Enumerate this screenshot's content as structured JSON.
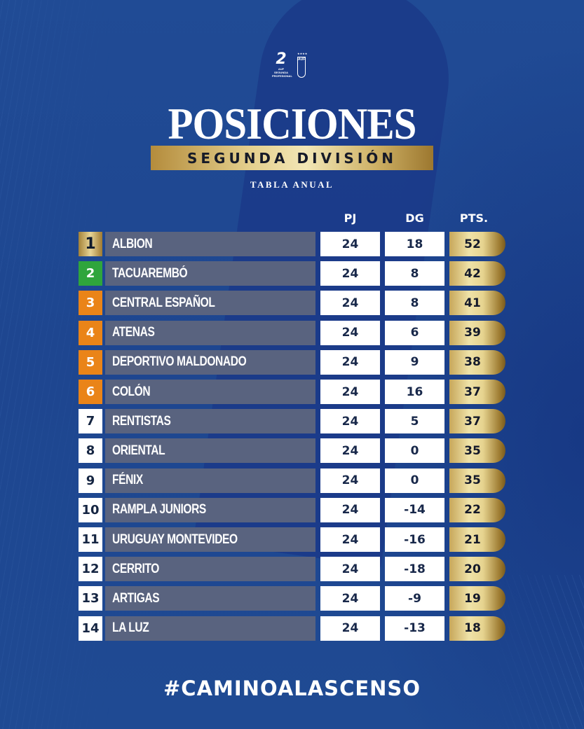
{
  "header": {
    "logos": {
      "league_logo_text": "2",
      "league_logo_sub": "AUF SEGUNDA PROFESIONAL",
      "federation_logo_text": "AUF",
      "federation_logo_stars": "★★★★"
    },
    "title": "POSICIONES",
    "subtitle": "SEGUNDA DIVISIÓN",
    "tagline": "TABLA ANUAL"
  },
  "colors": {
    "background": "#1f4a93",
    "gold": "#e4cf8d",
    "green_badge": "#2fa53c",
    "orange_badge": "#ea8418",
    "name_bar": "#59637f"
  },
  "table": {
    "columns": [
      "PJ",
      "DG",
      "PTS."
    ],
    "rows": [
      {
        "pos": "1",
        "team": "ALBION",
        "pj": "24",
        "dg": "18",
        "pts": "52",
        "badge": "gold"
      },
      {
        "pos": "2",
        "team": "TACUAREMBÓ",
        "pj": "24",
        "dg": "8",
        "pts": "42",
        "badge": "green"
      },
      {
        "pos": "3",
        "team": "CENTRAL ESPAÑOL",
        "pj": "24",
        "dg": "8",
        "pts": "41",
        "badge": "orange"
      },
      {
        "pos": "4",
        "team": "ATENAS",
        "pj": "24",
        "dg": "6",
        "pts": "39",
        "badge": "orange"
      },
      {
        "pos": "5",
        "team": "DEPORTIVO MALDONADO",
        "pj": "24",
        "dg": "9",
        "pts": "38",
        "badge": "orange"
      },
      {
        "pos": "6",
        "team": "COLÓN",
        "pj": "24",
        "dg": "16",
        "pts": "37",
        "badge": "orange"
      },
      {
        "pos": "7",
        "team": "RENTISTAS",
        "pj": "24",
        "dg": "5",
        "pts": "37",
        "badge": "white"
      },
      {
        "pos": "8",
        "team": "ORIENTAL",
        "pj": "24",
        "dg": "0",
        "pts": "35",
        "badge": "white"
      },
      {
        "pos": "9",
        "team": "FÉNIX",
        "pj": "24",
        "dg": "0",
        "pts": "35",
        "badge": "white"
      },
      {
        "pos": "10",
        "team": "RAMPLA JUNIORS",
        "pj": "24",
        "dg": "-14",
        "pts": "22",
        "badge": "white"
      },
      {
        "pos": "11",
        "team": "URUGUAY MONTEVIDEO",
        "pj": "24",
        "dg": "-16",
        "pts": "21",
        "badge": "white"
      },
      {
        "pos": "12",
        "team": "CERRITO",
        "pj": "24",
        "dg": "-18",
        "pts": "20",
        "badge": "white"
      },
      {
        "pos": "13",
        "team": "ARTIGAS",
        "pj": "24",
        "dg": "-9",
        "pts": "19",
        "badge": "white"
      },
      {
        "pos": "14",
        "team": "LA LUZ",
        "pj": "24",
        "dg": "-13",
        "pts": "18",
        "badge": "white"
      }
    ]
  },
  "footer": {
    "hashtag": "#CAMINOALASCENSO"
  }
}
